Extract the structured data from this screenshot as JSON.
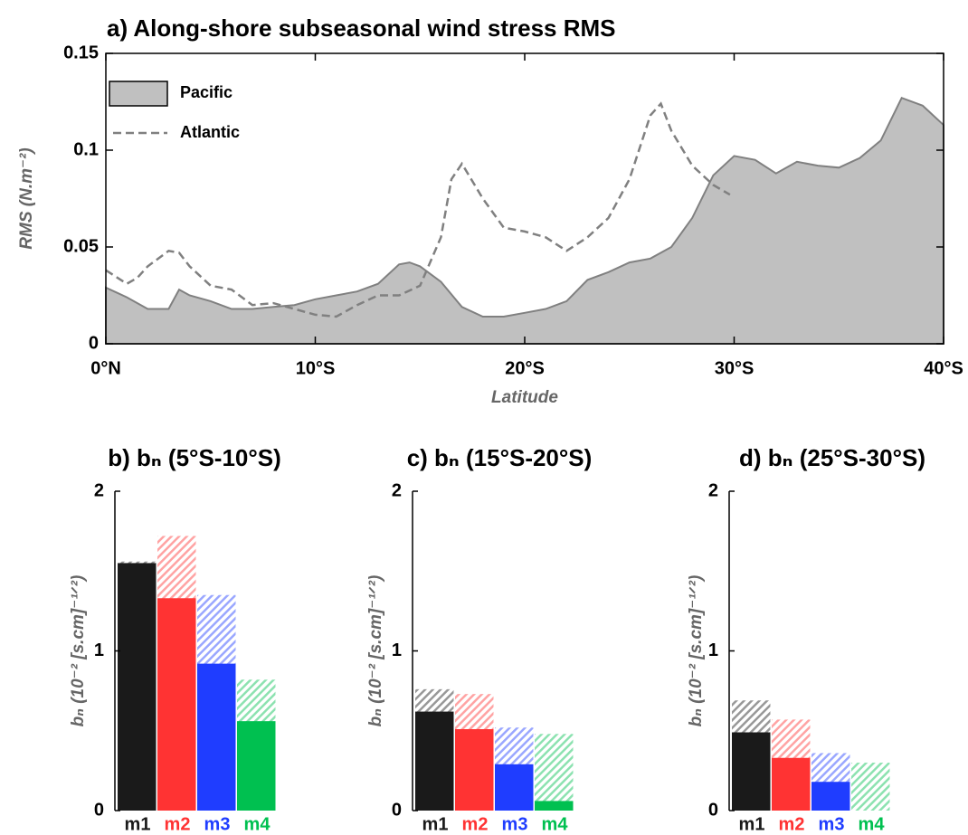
{
  "chart_data": [
    {
      "type": "line",
      "title": "a) Along-shore subseasonal wind stress RMS",
      "x_label": "Latitude",
      "y_label": "RMS (N.m⁻²)",
      "xlim": [
        0,
        40
      ],
      "ylim": [
        0,
        0.15
      ],
      "xticks": [
        {
          "value": 0,
          "label": "0°N"
        },
        {
          "value": 10,
          "label": "10°S"
        },
        {
          "value": 20,
          "label": "20°S"
        },
        {
          "value": 30,
          "label": "30°S"
        },
        {
          "value": 40,
          "label": "40°S"
        }
      ],
      "yticks": [
        0,
        0.05,
        0.1,
        0.15
      ],
      "legend": "upper left",
      "series": [
        {
          "name": "Pacific",
          "color": "#808080",
          "fill_color": "#c0c0c0",
          "filled": true,
          "x": [
            0,
            1,
            2,
            3,
            3.5,
            4,
            5,
            6,
            7,
            8,
            9,
            10,
            11,
            12,
            13,
            14,
            14.5,
            15,
            16,
            17,
            18,
            19,
            20,
            21,
            22,
            23,
            24,
            25,
            26,
            27,
            28,
            29,
            30,
            31,
            32,
            33,
            34,
            35,
            36,
            37,
            38,
            39,
            40
          ],
          "values": [
            0.029,
            0.024,
            0.018,
            0.018,
            0.028,
            0.025,
            0.022,
            0.018,
            0.018,
            0.019,
            0.02,
            0.023,
            0.025,
            0.027,
            0.031,
            0.041,
            0.042,
            0.04,
            0.032,
            0.019,
            0.014,
            0.014,
            0.016,
            0.018,
            0.022,
            0.033,
            0.037,
            0.042,
            0.044,
            0.05,
            0.065,
            0.087,
            0.097,
            0.095,
            0.088,
            0.094,
            0.092,
            0.091,
            0.096,
            0.105,
            0.127,
            0.123,
            0.113
          ]
        },
        {
          "name": "Atlantic",
          "color": "#808080",
          "dashed": true,
          "x": [
            0,
            1,
            1.5,
            2,
            3,
            3.5,
            4,
            5,
            6,
            7,
            8,
            9,
            10,
            11,
            12,
            13,
            14,
            15,
            16,
            16.5,
            17,
            18,
            19,
            20,
            21,
            22,
            23,
            24,
            25,
            26,
            26.5,
            27,
            28,
            29,
            29.8
          ],
          "values": [
            0.038,
            0.031,
            0.034,
            0.04,
            0.048,
            0.047,
            0.04,
            0.03,
            0.028,
            0.02,
            0.021,
            0.018,
            0.015,
            0.014,
            0.02,
            0.025,
            0.025,
            0.03,
            0.055,
            0.085,
            0.093,
            0.075,
            0.06,
            0.058,
            0.055,
            0.048,
            0.055,
            0.065,
            0.085,
            0.118,
            0.124,
            0.11,
            0.092,
            0.082,
            0.077
          ]
        }
      ]
    },
    {
      "type": "bar",
      "title": "b) bₙ (5°S-10°S)",
      "y_label": "bₙ (10⁻² [s.cm]⁻¹ᐟ²)",
      "categories": [
        "m1",
        "m2",
        "m3",
        "m4"
      ],
      "colors": [
        "#1a1a1a",
        "#ff3333",
        "#1f3dff",
        "#00c050"
      ],
      "ylim": [
        0,
        2
      ],
      "yticks": [
        0,
        1,
        2
      ],
      "series": [
        {
          "hatched": true,
          "values": [
            1.56,
            1.72,
            1.35,
            0.82
          ]
        },
        {
          "values": [
            1.55,
            1.33,
            0.92,
            0.56
          ]
        }
      ]
    },
    {
      "type": "bar",
      "title": "c) bₙ (15°S-20°S)",
      "y_label": "bₙ (10⁻² [s.cm]⁻¹ᐟ²)",
      "categories": [
        "m1",
        "m2",
        "m3",
        "m4"
      ],
      "colors": [
        "#1a1a1a",
        "#ff3333",
        "#1f3dff",
        "#00c050"
      ],
      "ylim": [
        0,
        2
      ],
      "yticks": [
        0,
        1,
        2
      ],
      "series": [
        {
          "hatched": true,
          "values": [
            0.76,
            0.73,
            0.52,
            0.48
          ]
        },
        {
          "values": [
            0.62,
            0.51,
            0.29,
            0.06
          ]
        }
      ]
    },
    {
      "type": "bar",
      "title": "d) bₙ (25°S-30°S)",
      "y_label": "bₙ (10⁻² [s.cm]⁻¹ᐟ²)",
      "categories": [
        "m1",
        "m2",
        "m3",
        "m4"
      ],
      "colors": [
        "#1a1a1a",
        "#ff3333",
        "#1f3dff",
        "#00c050"
      ],
      "ylim": [
        0,
        2
      ],
      "yticks": [
        0,
        1,
        2
      ],
      "series": [
        {
          "hatched": true,
          "values": [
            0.69,
            0.57,
            0.36,
            0.3
          ]
        },
        {
          "values": [
            0.49,
            0.33,
            0.18,
            null
          ]
        }
      ]
    }
  ]
}
